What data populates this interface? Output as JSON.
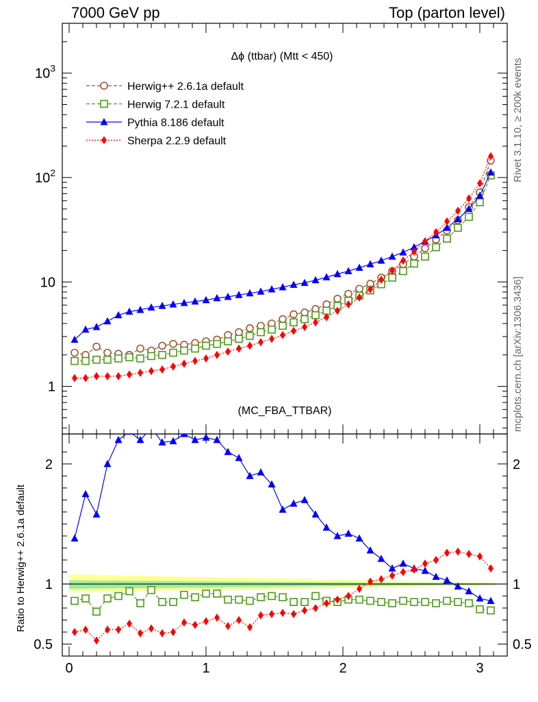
{
  "header": {
    "left": "7000 GeV pp",
    "right": "Top (parton level)"
  },
  "side_labels": {
    "rivet": "Rivet 3.1.10, ≥ 200k events",
    "mcplots": "mcplots.cern.ch [arXiv:1306.3436]"
  },
  "chart_data": [
    {
      "type": "line",
      "title": "Δϕ (ttbar) (Mtt < 450)",
      "watermark": "(MC_FBA_TTBAR)",
      "yscale": "log",
      "ylim": [
        0.35,
        3000
      ],
      "xlim": [
        -0.05,
        3.2
      ],
      "yticks": [
        {
          "value": 1,
          "label": "1"
        },
        {
          "value": 10,
          "label": "10"
        },
        {
          "value": 100,
          "label": "10²"
        },
        {
          "value": 1000,
          "label": "10³"
        }
      ],
      "legend_position": "top-left",
      "x": [
        0.04,
        0.12,
        0.2,
        0.28,
        0.36,
        0.44,
        0.52,
        0.6,
        0.68,
        0.76,
        0.84,
        0.92,
        1.0,
        1.08,
        1.16,
        1.24,
        1.32,
        1.4,
        1.48,
        1.56,
        1.64,
        1.72,
        1.8,
        1.88,
        1.96,
        2.04,
        2.12,
        2.2,
        2.28,
        2.36,
        2.44,
        2.52,
        2.6,
        2.68,
        2.76,
        2.84,
        2.92,
        3.0,
        3.08
      ],
      "series": [
        {
          "name": "Herwig++ 2.6.1a default",
          "color": "#a0522d",
          "marker": "open-circle",
          "dash": "dashed",
          "values": [
            2.1,
            2.0,
            2.4,
            2.1,
            2.05,
            2.0,
            2.3,
            2.2,
            2.45,
            2.55,
            2.5,
            2.6,
            2.7,
            2.8,
            3.1,
            3.3,
            3.6,
            3.8,
            4.0,
            4.4,
            4.9,
            5.1,
            5.5,
            6.1,
            6.9,
            7.7,
            8.6,
            9.6,
            11.0,
            12.7,
            14.8,
            17.5,
            21,
            25.5,
            31,
            39,
            52,
            72,
            145
          ]
        },
        {
          "name": "Herwig 7.2.1 default",
          "color": "#4a9a16",
          "marker": "open-square",
          "dash": "dashed",
          "values": [
            1.75,
            1.75,
            1.8,
            1.8,
            1.85,
            1.9,
            1.85,
            1.95,
            2.0,
            2.1,
            2.2,
            2.3,
            2.45,
            2.55,
            2.7,
            2.85,
            3.05,
            3.3,
            3.5,
            3.8,
            4.1,
            4.4,
            4.8,
            5.3,
            5.9,
            6.6,
            7.4,
            8.3,
            9.5,
            11.0,
            12.7,
            15.0,
            17.5,
            21.5,
            26,
            33,
            42,
            58,
            105
          ]
        },
        {
          "name": "Pythia 8.186 default",
          "color": "#0000ff",
          "marker": "filled-triangle",
          "dash": "solid",
          "values": [
            2.8,
            3.5,
            3.7,
            4.2,
            4.8,
            5.2,
            5.4,
            5.7,
            5.9,
            6.1,
            6.3,
            6.5,
            6.7,
            7.0,
            7.2,
            7.5,
            7.8,
            8.1,
            8.5,
            8.9,
            9.4,
            9.8,
            10.4,
            11.1,
            11.9,
            12.7,
            13.7,
            14.8,
            16.0,
            17.5,
            19.2,
            21.5,
            24.5,
            28,
            33,
            40,
            50,
            67,
            112
          ]
        },
        {
          "name": "Sherpa 2.2.9 default",
          "color": "#ff0000",
          "marker": "filled-diamond",
          "dash": "dotted",
          "values": [
            1.2,
            1.2,
            1.25,
            1.25,
            1.25,
            1.3,
            1.35,
            1.4,
            1.45,
            1.55,
            1.65,
            1.75,
            1.85,
            2.0,
            2.15,
            2.3,
            2.45,
            2.65,
            2.85,
            3.1,
            3.4,
            3.7,
            4.1,
            4.6,
            5.3,
            6.1,
            7.1,
            8.5,
            10.5,
            12.8,
            16.0,
            19.5,
            24.5,
            30,
            38,
            48,
            63,
            88,
            160
          ]
        }
      ]
    },
    {
      "type": "line",
      "ylabel": "Ratio to Herwig++ 2.6.1a default",
      "ylim": [
        0.4,
        2.25
      ],
      "xlim": [
        -0.05,
        3.2
      ],
      "yticks": [
        {
          "value": 0.5,
          "label": "0.5"
        },
        {
          "value": 1,
          "label": "1"
        },
        {
          "value": 2,
          "label": "2"
        }
      ],
      "xticks": [
        {
          "value": 0,
          "label": "0"
        },
        {
          "value": 1,
          "label": "1"
        },
        {
          "value": 2,
          "label": "2"
        },
        {
          "value": 3,
          "label": "3"
        }
      ],
      "band_yellow": [
        0.93,
        1.08
      ],
      "band_green": [
        0.96,
        1.03
      ],
      "x": [
        0.04,
        0.12,
        0.2,
        0.28,
        0.36,
        0.44,
        0.52,
        0.6,
        0.68,
        0.76,
        0.84,
        0.92,
        1.0,
        1.08,
        1.16,
        1.24,
        1.32,
        1.4,
        1.48,
        1.56,
        1.64,
        1.72,
        1.8,
        1.88,
        1.96,
        2.04,
        2.12,
        2.2,
        2.28,
        2.36,
        2.44,
        2.52,
        2.6,
        2.68,
        2.76,
        2.84,
        2.92,
        3.0,
        3.08
      ],
      "series": [
        {
          "name": "Herwig 7.2.1 default",
          "color": "#4a9a16",
          "marker": "open-square",
          "dash": "dashed",
          "values": [
            0.86,
            0.88,
            0.77,
            0.88,
            0.9,
            0.94,
            0.84,
            0.95,
            0.85,
            0.85,
            0.91,
            0.89,
            0.92,
            0.92,
            0.87,
            0.87,
            0.86,
            0.89,
            0.9,
            0.89,
            0.85,
            0.85,
            0.9,
            0.86,
            0.85,
            0.87,
            0.87,
            0.86,
            0.85,
            0.84,
            0.86,
            0.85,
            0.85,
            0.84,
            0.86,
            0.85,
            0.84,
            0.79,
            0.78
          ]
        },
        {
          "name": "Pythia 8.186 default",
          "color": "#0000ff",
          "marker": "filled-triangle",
          "dash": "solid",
          "values": [
            1.38,
            1.75,
            1.58,
            2.0,
            2.2,
            2.27,
            2.2,
            2.3,
            2.18,
            2.19,
            2.25,
            2.2,
            2.22,
            2.2,
            2.1,
            2.05,
            1.9,
            1.93,
            1.83,
            1.62,
            1.67,
            1.7,
            1.58,
            1.47,
            1.4,
            1.42,
            1.38,
            1.28,
            1.21,
            1.13,
            1.17,
            1.13,
            1.11,
            1.06,
            1.03,
            0.98,
            0.94,
            0.88,
            0.86
          ]
        },
        {
          "name": "Sherpa 2.2.9 default",
          "color": "#ff0000",
          "marker": "filled-diamond",
          "dash": "dotted",
          "values": [
            0.6,
            0.62,
            0.53,
            0.62,
            0.62,
            0.67,
            0.59,
            0.63,
            0.59,
            0.6,
            0.68,
            0.66,
            0.69,
            0.72,
            0.65,
            0.7,
            0.64,
            0.74,
            0.75,
            0.76,
            0.75,
            0.78,
            0.8,
            0.84,
            0.87,
            0.9,
            0.96,
            1.02,
            1.04,
            1.07,
            1.1,
            1.12,
            1.17,
            1.2,
            1.26,
            1.27,
            1.25,
            1.23,
            1.13
          ]
        }
      ]
    }
  ]
}
